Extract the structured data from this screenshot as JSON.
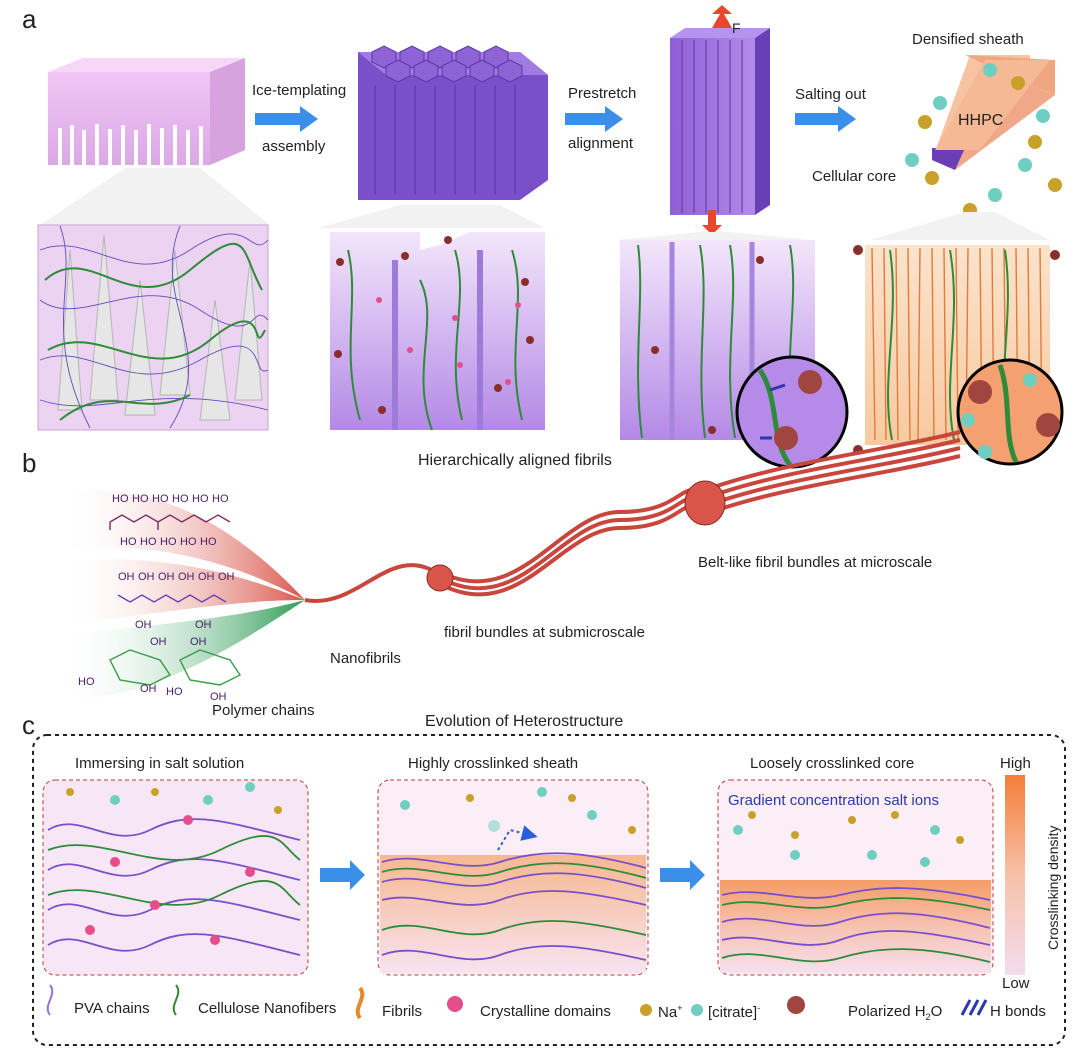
{
  "panels": {
    "a": "a",
    "b": "b",
    "c": "c"
  },
  "panel_a": {
    "step1": "Ice-templating",
    "step1b": "assembly",
    "step2": "Prestretch",
    "step2b": "alignment",
    "step3": "Salting out",
    "force": "F",
    "sheath": "Densified sheath",
    "hhpc": "HHPC",
    "core": "Cellular core",
    "caption": "Hierarchically aligned fibrils"
  },
  "panel_b": {
    "belt": "Belt-like fibril bundles at microscale",
    "sub": "fibril bundles at submicroscale",
    "nano": "Nanofibrils",
    "poly": "Polymer chains",
    "ho_labels": [
      "HO",
      "HO",
      "HO",
      "HO",
      "HO",
      "HO",
      "HO",
      "OH",
      "OH",
      "OH",
      "OH",
      "OH",
      "OH",
      "HO",
      "HO",
      "HO",
      "HO",
      "HO",
      "HO",
      "OH",
      "OH",
      "OH",
      "OH",
      "OH",
      "OH",
      "OH",
      "OH",
      "O",
      "O",
      "HO",
      "OH",
      "HO",
      "OH"
    ]
  },
  "panel_c": {
    "title": "Evolution of Heterostructure",
    "box1": "Immersing in salt solution",
    "box2": "Highly crosslinked sheath",
    "box3": "Loosely crosslinked core",
    "gradient_note": "Gradient concentration salt ions",
    "scale_high": "High",
    "scale_low": "Low",
    "scale_axis": "Crosslinking density"
  },
  "legend": {
    "pva": "PVA chains",
    "cnf": "Cellulose Nanofibers",
    "fibrils": "Fibrils",
    "crystal": "Crystalline domains",
    "na": "Na",
    "na_sup": "+",
    "citrate": "[citrate]",
    "citrate_sup": "-",
    "water": "Polarized H",
    "water_sub": "2",
    "water_end": "O",
    "hbonds": "H bonds"
  },
  "colors": {
    "purple": "#9b6fd8",
    "purple_dark": "#6a3fb5",
    "pink_bg": "#eeccf0",
    "green": "#2e8b3a",
    "blue_arrow": "#3b8fe8",
    "red_bundle": "#d9554a",
    "orange_sheath": "#f6b58a",
    "teal_ion": "#6ecfc0",
    "gold_ion": "#c9a02a",
    "dash_red": "#c0392b"
  }
}
